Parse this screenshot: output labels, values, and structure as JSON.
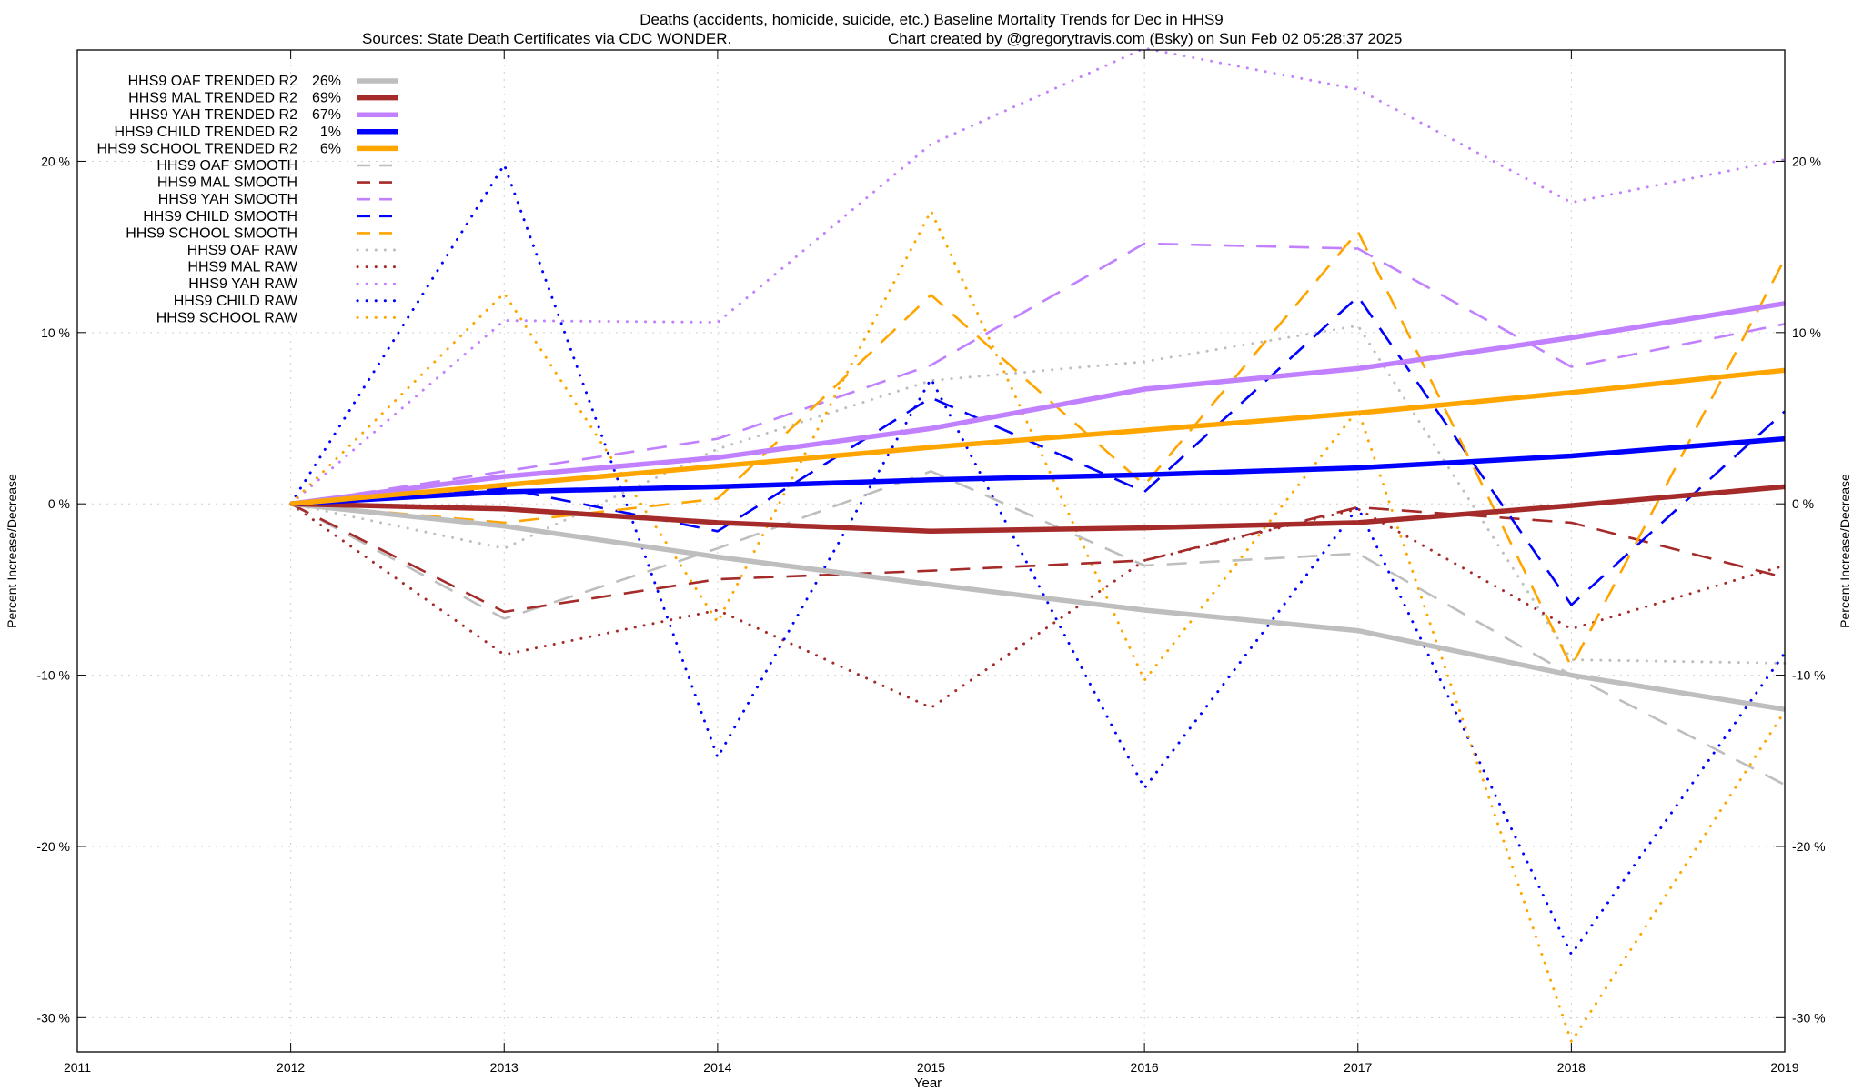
{
  "chart_data": {
    "type": "line",
    "title": "Deaths (accidents, homicide, suicide, etc.)  Baseline Mortality Trends for Dec in HHS9",
    "subtitle_left": "Sources: State Death Certificates via CDC WONDER.",
    "subtitle_right": "Chart created by @gregorytravis.com (Bsky) on Sun Feb 02 05:28:37 2025",
    "xlabel": "Year",
    "ylabel": "Percent Increase/Decrease",
    "ylabel_right": "Percent Increase/Decrease",
    "xlim": [
      2011,
      2019
    ],
    "ylim": [
      -32,
      26.5
    ],
    "x_ticks": [
      2011,
      2012,
      2013,
      2014,
      2015,
      2016,
      2017,
      2018,
      2019
    ],
    "y_ticks": [
      -30,
      -20,
      -10,
      0,
      10,
      20
    ],
    "y_tick_labels": [
      "-30 %",
      "-20 %",
      "-10 %",
      "0 %",
      "10 %",
      "20 %"
    ],
    "grid": true,
    "legend_position": "top-left",
    "series": [
      {
        "name": "HHS9 OAF TRENDED R2",
        "r2": "26%",
        "color": "#bebebe",
        "style": "trend",
        "x": [
          2012,
          2013,
          2014,
          2015,
          2016,
          2017,
          2018,
          2019
        ],
        "values": [
          0,
          -1.3,
          -3.1,
          -4.7,
          -6.2,
          -7.4,
          -10.0,
          -12.0
        ]
      },
      {
        "name": "HHS9 MAL TRENDED R2",
        "r2": "69%",
        "color": "#a52a2a",
        "style": "trend",
        "x": [
          2012,
          2013,
          2014,
          2015,
          2016,
          2017,
          2018,
          2019
        ],
        "values": [
          0,
          -0.3,
          -1.1,
          -1.6,
          -1.4,
          -1.1,
          -0.1,
          1.0
        ]
      },
      {
        "name": "HHS9 YAH TRENDED R2",
        "r2": "67%",
        "color": "#c080ff",
        "style": "trend",
        "x": [
          2012,
          2013,
          2014,
          2015,
          2016,
          2017,
          2018,
          2019
        ],
        "values": [
          0,
          1.6,
          2.7,
          4.4,
          6.7,
          7.9,
          9.7,
          11.7
        ]
      },
      {
        "name": "HHS9 CHILD TRENDED R2",
        "r2": "1%",
        "color": "#0000ff",
        "style": "trend",
        "x": [
          2012,
          2013,
          2014,
          2015,
          2016,
          2017,
          2018,
          2019
        ],
        "values": [
          0,
          0.7,
          1.0,
          1.4,
          1.7,
          2.1,
          2.8,
          3.8
        ]
      },
      {
        "name": "HHS9 SCHOOL TRENDED R2",
        "r2": "6%",
        "color": "#ffa500",
        "style": "trend",
        "x": [
          2012,
          2013,
          2014,
          2015,
          2016,
          2017,
          2018,
          2019
        ],
        "values": [
          0,
          1.1,
          2.2,
          3.3,
          4.3,
          5.3,
          6.5,
          7.8
        ]
      },
      {
        "name": "HHS9 OAF SMOOTH",
        "color": "#bebebe",
        "style": "smooth",
        "x": [
          2012,
          2013,
          2014,
          2015,
          2016,
          2017,
          2018,
          2019
        ],
        "values": [
          0,
          -6.7,
          -2.6,
          1.9,
          -3.6,
          -2.9,
          -10.0,
          -16.4
        ]
      },
      {
        "name": "HHS9 MAL SMOOTH",
        "color": "#a52a2a",
        "style": "smooth",
        "x": [
          2012,
          2013,
          2014,
          2015,
          2016,
          2017,
          2018,
          2019
        ],
        "values": [
          0,
          -6.3,
          -4.4,
          -3.9,
          -3.3,
          -0.2,
          -1.1,
          -4.3
        ]
      },
      {
        "name": "HHS9 YAH SMOOTH",
        "color": "#c080ff",
        "style": "smooth",
        "x": [
          2012,
          2013,
          2014,
          2015,
          2016,
          2017,
          2018,
          2019
        ],
        "values": [
          0,
          1.9,
          3.8,
          8.1,
          15.2,
          14.9,
          8.0,
          10.5
        ]
      },
      {
        "name": "HHS9 CHILD SMOOTH",
        "color": "#0000ff",
        "style": "smooth",
        "x": [
          2012,
          2013,
          2014,
          2015,
          2016,
          2017,
          2018,
          2019
        ],
        "values": [
          0,
          0.9,
          -1.6,
          6.2,
          0.7,
          12.1,
          -5.9,
          5.4
        ]
      },
      {
        "name": "HHS9 SCHOOL SMOOTH",
        "color": "#ffa500",
        "style": "smooth",
        "x": [
          2012,
          2013,
          2014,
          2015,
          2016,
          2017,
          2018,
          2019
        ],
        "values": [
          0,
          -1.1,
          0.3,
          12.2,
          1.1,
          15.9,
          -9.5,
          14.3
        ]
      },
      {
        "name": "HHS9 OAF RAW",
        "color": "#bebebe",
        "style": "raw",
        "x": [
          2012,
          2013,
          2014,
          2015,
          2016,
          2017,
          2018,
          2019
        ],
        "values": [
          0,
          -2.6,
          3.2,
          7.2,
          8.3,
          10.4,
          -9.1,
          -9.3
        ]
      },
      {
        "name": "HHS9 MAL RAW",
        "color": "#a52a2a",
        "style": "raw",
        "x": [
          2012,
          2013,
          2014,
          2015,
          2016,
          2017,
          2018,
          2019
        ],
        "values": [
          0,
          -8.8,
          -6.2,
          -11.9,
          -3.3,
          -0.3,
          -7.3,
          -3.6
        ]
      },
      {
        "name": "HHS9 YAH RAW",
        "color": "#c080ff",
        "style": "raw",
        "x": [
          2012,
          2013,
          2014,
          2015,
          2016,
          2017,
          2018,
          2019
        ],
        "values": [
          0,
          10.7,
          10.6,
          21.0,
          26.6,
          24.2,
          17.6,
          20.1
        ]
      },
      {
        "name": "HHS9 CHILD RAW",
        "color": "#0000ff",
        "style": "raw",
        "x": [
          2012,
          2013,
          2014,
          2015,
          2016,
          2017,
          2018,
          2019
        ],
        "values": [
          0,
          19.8,
          -14.8,
          7.3,
          -16.6,
          -0.2,
          -26.3,
          -8.7
        ]
      },
      {
        "name": "HHS9 SCHOOL RAW",
        "color": "#ffa500",
        "style": "raw",
        "x": [
          2012,
          2013,
          2014,
          2015,
          2016,
          2017,
          2018,
          2019
        ],
        "values": [
          0,
          12.3,
          -6.9,
          17.1,
          -10.3,
          5.5,
          -31.4,
          -12.1
        ]
      }
    ]
  }
}
